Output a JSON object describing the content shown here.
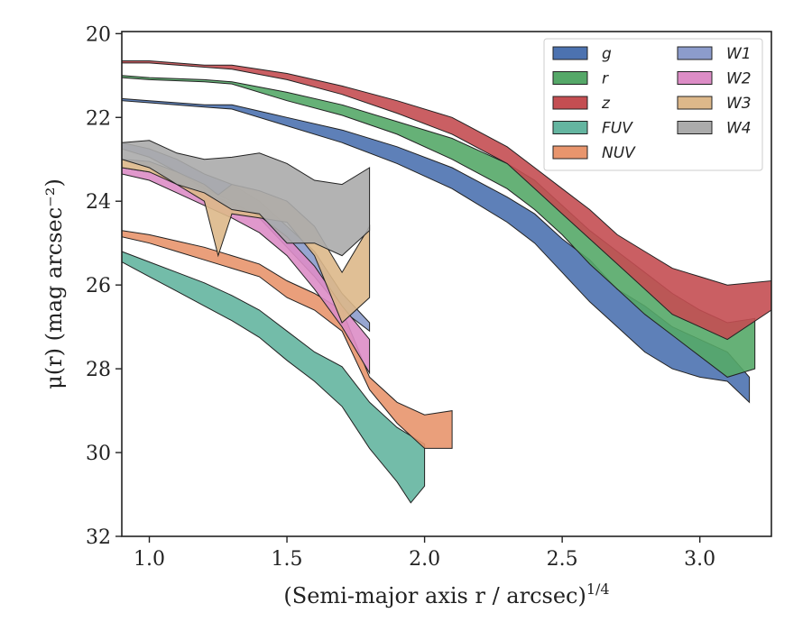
{
  "chart_data": {
    "type": "area",
    "xlabel": "(Semi-major axis r / arcsec)",
    "xlabel_exponent": "1/4",
    "ylabel": "μ(r) (mag arcsec⁻²)",
    "xlim": [
      0.9,
      3.26
    ],
    "ylim": [
      32,
      19.95
    ],
    "y_inverted": true,
    "x_ticks": [
      1.0,
      1.5,
      2.0,
      2.5,
      3.0
    ],
    "x_tick_labels": [
      "1.0",
      "1.5",
      "2.0",
      "2.5",
      "3.0"
    ],
    "y_ticks": [
      20,
      22,
      24,
      26,
      28,
      30,
      32
    ],
    "y_tick_labels": [
      "20",
      "22",
      "24",
      "26",
      "28",
      "30",
      "32"
    ],
    "grid": false,
    "legend_placement": "top-right",
    "legend_columns": 2,
    "series": [
      {
        "name": "g",
        "color": "#4c72b0",
        "x": [
          0.9,
          1.0,
          1.2,
          1.3,
          1.5,
          1.7,
          1.9,
          2.1,
          2.3,
          2.4,
          2.5,
          2.6,
          2.7,
          2.8,
          2.9,
          3.0,
          3.1,
          3.18
        ],
        "lo": [
          21.55,
          21.6,
          21.7,
          21.7,
          22.0,
          22.3,
          22.7,
          23.2,
          23.9,
          24.3,
          24.9,
          25.4,
          26.1,
          26.5,
          27.0,
          27.3,
          27.6,
          28.2
        ],
        "hi": [
          21.6,
          21.65,
          21.75,
          21.8,
          22.2,
          22.6,
          23.1,
          23.7,
          24.5,
          25.0,
          25.7,
          26.4,
          27.0,
          27.6,
          28.0,
          28.2,
          28.3,
          28.8
        ]
      },
      {
        "name": "r",
        "color": "#55a868",
        "x": [
          0.9,
          1.0,
          1.2,
          1.3,
          1.5,
          1.7,
          1.9,
          2.1,
          2.3,
          2.4,
          2.5,
          2.6,
          2.7,
          2.8,
          2.9,
          3.0,
          3.1,
          3.2
        ],
        "lo": [
          21.0,
          21.05,
          21.1,
          21.15,
          21.4,
          21.7,
          22.1,
          22.5,
          23.1,
          23.5,
          24.1,
          24.7,
          25.2,
          25.7,
          26.2,
          26.6,
          26.9,
          26.8
        ],
        "hi": [
          21.05,
          21.1,
          21.15,
          21.2,
          21.6,
          21.95,
          22.4,
          23.0,
          23.7,
          24.2,
          24.8,
          25.5,
          26.1,
          26.7,
          27.2,
          27.7,
          28.2,
          28.0
        ]
      },
      {
        "name": "z",
        "color": "#c44e52",
        "x": [
          0.9,
          1.0,
          1.2,
          1.3,
          1.5,
          1.7,
          1.9,
          2.1,
          2.3,
          2.4,
          2.5,
          2.6,
          2.7,
          2.8,
          2.9,
          3.0,
          3.1,
          3.26
        ],
        "lo": [
          20.65,
          20.65,
          20.75,
          20.75,
          20.95,
          21.25,
          21.6,
          22.0,
          22.7,
          23.2,
          23.7,
          24.2,
          24.8,
          25.2,
          25.6,
          25.8,
          26.0,
          25.9
        ],
        "hi": [
          20.7,
          20.7,
          20.8,
          20.85,
          21.1,
          21.45,
          21.9,
          22.4,
          23.1,
          23.7,
          24.3,
          24.9,
          25.5,
          26.1,
          26.7,
          27.0,
          27.3,
          26.6
        ]
      },
      {
        "name": "FUV",
        "color": "#64b5a0",
        "x": [
          0.9,
          1.0,
          1.1,
          1.2,
          1.3,
          1.4,
          1.5,
          1.6,
          1.7,
          1.8,
          1.9,
          1.95,
          2.0
        ],
        "lo": [
          25.2,
          25.45,
          25.7,
          25.95,
          26.25,
          26.6,
          27.1,
          27.6,
          27.95,
          28.8,
          29.4,
          29.6,
          29.8
        ],
        "hi": [
          25.45,
          25.8,
          26.15,
          26.5,
          26.85,
          27.25,
          27.8,
          28.3,
          28.9,
          29.9,
          30.7,
          31.2,
          30.8
        ]
      },
      {
        "name": "NUV",
        "color": "#e8956d",
        "x": [
          0.9,
          1.0,
          1.1,
          1.2,
          1.3,
          1.4,
          1.5,
          1.6,
          1.7,
          1.8,
          1.9,
          2.0,
          2.1
        ],
        "lo": [
          24.7,
          24.8,
          24.95,
          25.1,
          25.3,
          25.5,
          25.9,
          26.2,
          26.6,
          28.2,
          28.8,
          29.1,
          29.0
        ],
        "hi": [
          24.85,
          25.0,
          25.2,
          25.4,
          25.6,
          25.8,
          26.3,
          26.6,
          27.1,
          28.5,
          29.3,
          29.9,
          29.9
        ]
      },
      {
        "name": "W1",
        "color": "#8c9ccc",
        "x": [
          0.9,
          1.0,
          1.1,
          1.2,
          1.3,
          1.4,
          1.5,
          1.6,
          1.7,
          1.8
        ],
        "lo": [
          22.6,
          22.75,
          23.0,
          23.35,
          23.6,
          24.0,
          24.6,
          25.2,
          26.2,
          26.9
        ],
        "hi": [
          22.75,
          22.95,
          23.3,
          23.7,
          24.0,
          24.4,
          25.1,
          25.8,
          26.6,
          27.1
        ]
      },
      {
        "name": "W2",
        "color": "#dd8dc6",
        "x": [
          0.9,
          1.0,
          1.1,
          1.2,
          1.3,
          1.4,
          1.5,
          1.6,
          1.7,
          1.8
        ],
        "lo": [
          23.2,
          23.3,
          23.55,
          23.8,
          24.05,
          24.35,
          24.85,
          25.55,
          26.5,
          27.3
        ],
        "hi": [
          23.35,
          23.5,
          23.8,
          24.1,
          24.4,
          24.75,
          25.3,
          26.1,
          27.0,
          28.1
        ]
      },
      {
        "name": "W3",
        "color": "#ddb88a",
        "x": [
          0.9,
          1.0,
          1.1,
          1.2,
          1.25,
          1.3,
          1.4,
          1.5,
          1.6,
          1.7,
          1.8
        ],
        "lo": [
          23.0,
          23.05,
          23.3,
          23.6,
          23.85,
          23.6,
          23.75,
          24.0,
          24.6,
          25.7,
          24.6
        ],
        "hi": [
          23.2,
          23.3,
          23.6,
          24.0,
          25.3,
          24.3,
          24.4,
          24.5,
          25.3,
          26.9,
          26.3
        ]
      },
      {
        "name": "W4",
        "color": "#ababab",
        "x": [
          0.9,
          1.0,
          1.1,
          1.2,
          1.3,
          1.4,
          1.5,
          1.6,
          1.7,
          1.8
        ],
        "lo": [
          22.6,
          22.55,
          22.85,
          23.0,
          22.95,
          22.85,
          23.1,
          23.5,
          23.6,
          23.2
        ],
        "hi": [
          23.0,
          23.2,
          23.6,
          23.8,
          24.2,
          24.3,
          25.0,
          25.0,
          25.3,
          24.7
        ]
      }
    ]
  }
}
